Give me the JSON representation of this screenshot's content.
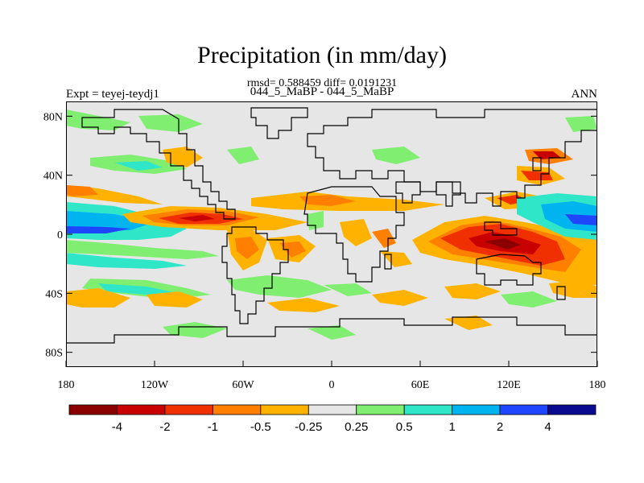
{
  "title": "Precipitation (in mm/day)",
  "subtitle": "rmsd= 0.588459 diff= 0.0191231",
  "center_label": "044_5_MaBP - 044_5_MaBP",
  "left_label": "Expt = teyej-teydj1",
  "right_label": "ANN",
  "axes": {
    "x_ticks": [
      "180",
      "120W",
      "60W",
      "0",
      "60E",
      "120E",
      "180"
    ],
    "y_ticks": [
      "80N",
      "40N",
      "0",
      "40S",
      "80S"
    ]
  },
  "colorbar": {
    "labels": [
      "-4",
      "-2",
      "-1",
      "-0.5",
      "-0.25",
      "0.25",
      "0.5",
      "1",
      "2",
      "4"
    ],
    "colors": [
      "#8b0000",
      "#c80000",
      "#f03000",
      "#ff7f00",
      "#ffb300",
      "#e6e6e6",
      "#80ee70",
      "#30e6c8",
      "#00b4f0",
      "#1e46ff",
      "#0a0a90"
    ]
  },
  "palette": {
    "background": "#e6e6e6",
    "dry_strong": "#f03000",
    "dry": "#ff7f00",
    "dry_weak": "#ffb300",
    "wet_weak": "#80ee70",
    "wet": "#30e6c8",
    "wet_strong": "#00b4f0",
    "wettest": "#1e46ff"
  }
}
